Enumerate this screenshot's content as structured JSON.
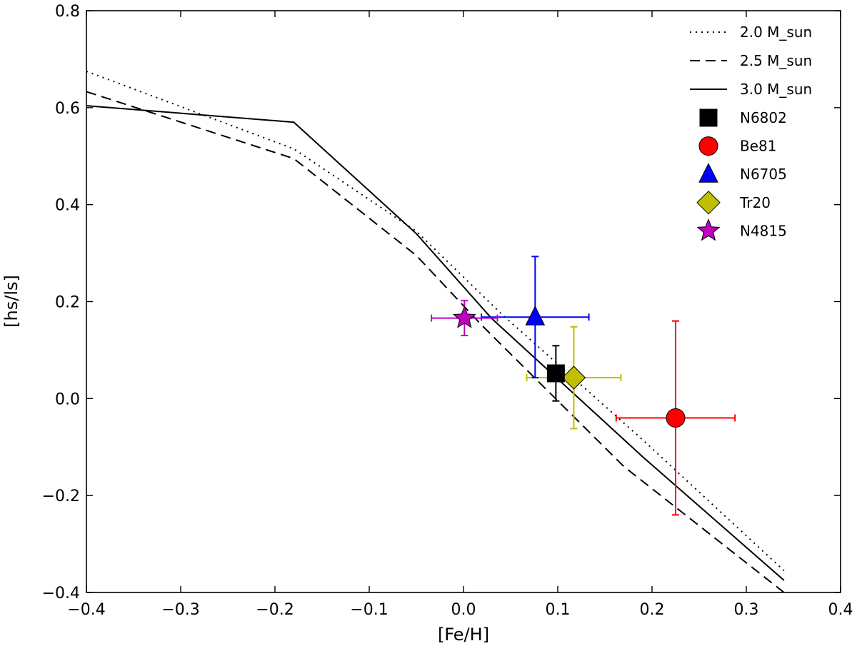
{
  "chart_data": {
    "type": "scatter",
    "title": "",
    "xlabel": "[Fe/H]",
    "ylabel": "[hs/ls]",
    "xlim": [
      -0.4,
      0.4
    ],
    "ylim": [
      -0.4,
      0.8
    ],
    "x_ticks": [
      -0.4,
      -0.3,
      -0.2,
      -0.1,
      0.0,
      0.1,
      0.2,
      0.3,
      0.4
    ],
    "y_ticks": [
      -0.4,
      -0.2,
      0.0,
      0.2,
      0.4,
      0.6,
      0.8
    ],
    "x_tick_labels": [
      "−0.4",
      "−0.3",
      "−0.2",
      "−0.1",
      "0.0",
      "0.1",
      "0.2",
      "0.3",
      "0.4"
    ],
    "y_tick_labels": [
      "−0.4",
      "−0.2",
      "0.0",
      "0.2",
      "0.4",
      "0.6",
      "0.8"
    ],
    "grid": false,
    "legend_position": "top-right",
    "models": [
      {
        "name": "2.0 M_sun",
        "style": "dotted",
        "color": "#000000",
        "x": [
          -0.4,
          -0.18,
          -0.05,
          0.04,
          0.19,
          0.34
        ],
        "y": [
          0.675,
          0.515,
          0.345,
          0.175,
          -0.085,
          -0.355
        ]
      },
      {
        "name": "2.5 M_sun",
        "style": "dashed",
        "color": "#000000",
        "x": [
          -0.4,
          -0.18,
          -0.05,
          0.02,
          0.17,
          0.34
        ],
        "y": [
          0.633,
          0.495,
          0.295,
          0.15,
          -0.14,
          -0.4
        ]
      },
      {
        "name": "3.0 M_sun",
        "style": "solid",
        "color": "#000000",
        "x": [
          -0.4,
          -0.18,
          -0.05,
          0.03,
          0.19,
          0.34
        ],
        "y": [
          0.604,
          0.57,
          0.34,
          0.165,
          -0.12,
          -0.375
        ]
      }
    ],
    "clusters": [
      {
        "name": "N6802",
        "marker": "square",
        "color": "#000000",
        "x": 0.098,
        "y": 0.052,
        "xerr": 0.007,
        "yerr": 0.057
      },
      {
        "name": "Be81",
        "marker": "circle",
        "color": "#ff0000",
        "x": 0.225,
        "y": -0.04,
        "xerr": 0.063,
        "yerr": 0.2
      },
      {
        "name": "N6705",
        "marker": "triangle",
        "color": "#0000ff",
        "x": 0.076,
        "y": 0.168,
        "xerr": 0.057,
        "yerr": 0.125
      },
      {
        "name": "Tr20",
        "marker": "diamond",
        "color": "#bfbf00",
        "x": 0.117,
        "y": 0.043,
        "xerr": 0.05,
        "yerr": 0.105
      },
      {
        "name": "N4815",
        "marker": "star",
        "color": "#bf00bf",
        "x": 0.001,
        "y": 0.166,
        "xerr": 0.035,
        "yerr": 0.036
      }
    ]
  }
}
